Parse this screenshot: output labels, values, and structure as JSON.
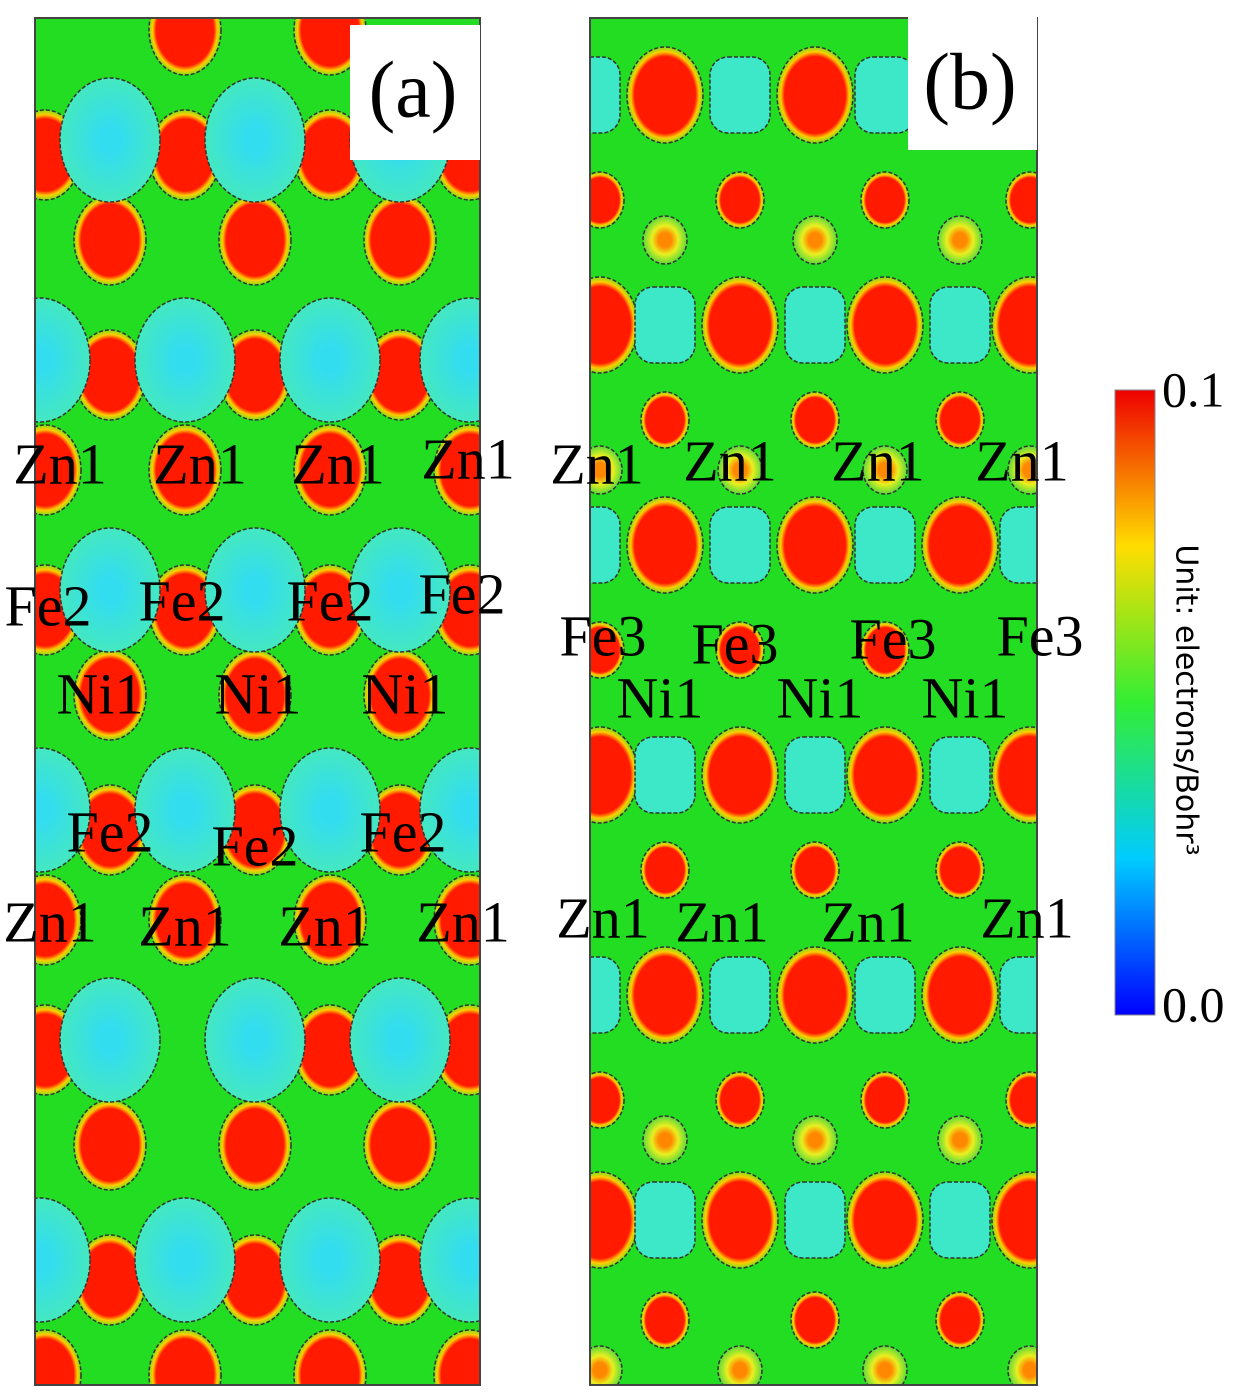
{
  "panels": [
    {
      "label": "(a)",
      "atoms": [
        {
          "label": "Zn1"
        },
        {
          "label": "Zn1"
        },
        {
          "label": "Zn1"
        },
        {
          "label": "Zn1"
        },
        {
          "label": "Fe2"
        },
        {
          "label": "Fe2"
        },
        {
          "label": "Fe2"
        },
        {
          "label": "Fe2"
        },
        {
          "label": "Ni1"
        },
        {
          "label": "Ni1"
        },
        {
          "label": "Ni1"
        },
        {
          "label": "Fe2"
        },
        {
          "label": "Fe2"
        },
        {
          "label": "Fe2"
        },
        {
          "label": "Zn1"
        },
        {
          "label": "Zn1"
        },
        {
          "label": "Zn1"
        },
        {
          "label": "Zn1"
        }
      ]
    },
    {
      "label": "(b)",
      "atoms": [
        {
          "label": "Zn1"
        },
        {
          "label": "Zn1"
        },
        {
          "label": "Zn1"
        },
        {
          "label": "Zn1"
        },
        {
          "label": "Fe3"
        },
        {
          "label": "Fe3"
        },
        {
          "label": "Fe3"
        },
        {
          "label": "Fe3"
        },
        {
          "label": "Ni1"
        },
        {
          "label": "Ni1"
        },
        {
          "label": "Ni1"
        },
        {
          "label": "Zn1"
        },
        {
          "label": "Zn1"
        },
        {
          "label": "Zn1"
        },
        {
          "label": "Zn1"
        }
      ]
    }
  ],
  "colorbar": {
    "max": "0.1",
    "min": "0.0",
    "label": "Unit: electrons/Bohr³"
  }
}
